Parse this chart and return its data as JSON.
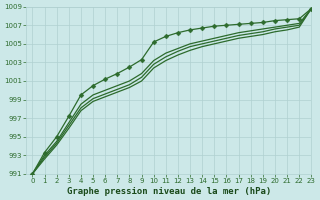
{
  "title": "",
  "xlabel": "Graphe pression niveau de la mer (hPa)",
  "ylabel": "",
  "background_color": "#cce8e8",
  "grid_color": "#b0d0d0",
  "line_color": "#2d6b2d",
  "xlim": [
    -0.5,
    23
  ],
  "ylim": [
    991,
    1009
  ],
  "yticks": [
    991,
    993,
    995,
    997,
    999,
    1001,
    1003,
    1005,
    1007,
    1009
  ],
  "xticks": [
    0,
    1,
    2,
    3,
    4,
    5,
    6,
    7,
    8,
    9,
    10,
    11,
    12,
    13,
    14,
    15,
    16,
    17,
    18,
    19,
    20,
    21,
    22,
    23
  ],
  "series": [
    {
      "y": [
        991.0,
        993.3,
        995.0,
        997.2,
        999.5,
        1000.5,
        1001.2,
        1001.8,
        1002.5,
        1003.3,
        1005.2,
        1005.8,
        1006.2,
        1006.5,
        1006.7,
        1006.9,
        1007.0,
        1007.1,
        1007.2,
        1007.3,
        1007.5,
        1007.6,
        1007.7,
        1008.8
      ],
      "has_markers": true
    },
    {
      "y": [
        991.0,
        993.0,
        994.5,
        996.5,
        998.5,
        999.5,
        1000.0,
        1000.5,
        1001.0,
        1001.8,
        1003.2,
        1004.0,
        1004.5,
        1005.0,
        1005.3,
        1005.6,
        1005.9,
        1006.2,
        1006.4,
        1006.6,
        1006.8,
        1007.0,
        1007.2,
        1008.8
      ],
      "has_markers": false
    },
    {
      "y": [
        991.0,
        992.8,
        994.3,
        996.2,
        998.1,
        999.1,
        999.6,
        1000.1,
        1000.6,
        1001.4,
        1002.8,
        1003.6,
        1004.2,
        1004.7,
        1005.0,
        1005.3,
        1005.6,
        1005.9,
        1006.1,
        1006.3,
        1006.6,
        1006.8,
        1007.0,
        1008.8
      ],
      "has_markers": false
    },
    {
      "y": [
        991.0,
        992.6,
        994.1,
        995.9,
        997.8,
        998.8,
        999.3,
        999.8,
        1000.3,
        1001.0,
        1002.4,
        1003.2,
        1003.8,
        1004.3,
        1004.7,
        1005.0,
        1005.3,
        1005.6,
        1005.8,
        1006.0,
        1006.3,
        1006.5,
        1006.8,
        1008.8
      ],
      "has_markers": false
    }
  ],
  "marker": "D",
  "marker_size": 2.5,
  "linewidth": 0.9,
  "xlabel_fontsize": 6.5,
  "tick_fontsize": 5,
  "xlabel_color": "#1a4a1a",
  "tick_color": "#2d6b2d"
}
